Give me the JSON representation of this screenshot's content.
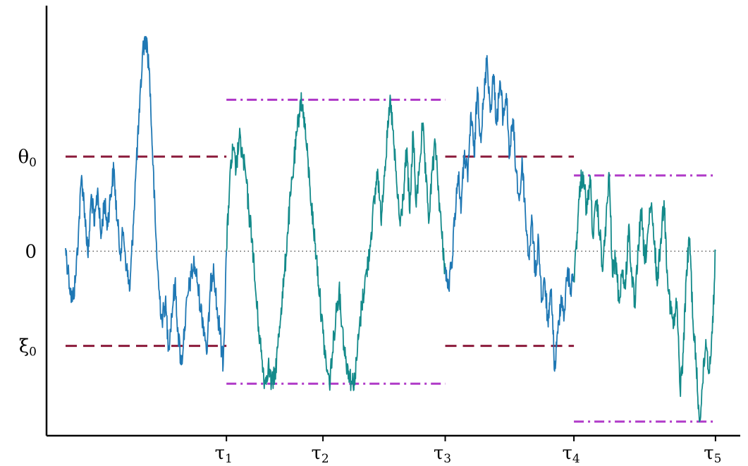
{
  "chart_data": {
    "type": "line",
    "title": "",
    "xlabel": "",
    "ylabel": "",
    "xlim": [
      0,
      10.2
    ],
    "ylim": [
      -2.7,
      3.4
    ],
    "grid": false,
    "legend": "none",
    "y_ticks": [
      {
        "label": "θ",
        "sub": "0",
        "value": 1.5
      },
      {
        "label": "0",
        "sub": "",
        "value": 0
      },
      {
        "label": "ξ",
        "sub": "0",
        "value": -1.5
      }
    ],
    "x_ticks": [
      {
        "label": "τ",
        "sub": "1",
        "value": 2.5
      },
      {
        "label": "τ",
        "sub": "2",
        "value": 4.0
      },
      {
        "label": "τ",
        "sub": "3",
        "value": 5.9
      },
      {
        "label": "τ",
        "sub": "4",
        "value": 7.9
      },
      {
        "label": "τ",
        "sub": "5",
        "value": 10.1
      }
    ],
    "reference_lines": [
      {
        "style": "dotted",
        "y": 0,
        "x": [
          0,
          10.1
        ],
        "color": "#555555"
      },
      {
        "style": "dashed",
        "y": 1.5,
        "x": [
          0,
          2.5
        ],
        "color": "#8b1a3a"
      },
      {
        "style": "dashed",
        "y": -1.5,
        "x": [
          0,
          2.5
        ],
        "color": "#8b1a3a"
      },
      {
        "style": "dashed",
        "y": 1.5,
        "x": [
          5.9,
          7.9
        ],
        "color": "#8b1a3a"
      },
      {
        "style": "dashed",
        "y": -1.5,
        "x": [
          5.9,
          7.9
        ],
        "color": "#8b1a3a"
      },
      {
        "style": "dashdot",
        "y": 2.4,
        "x": [
          2.5,
          5.9
        ],
        "color": "#b03ac8"
      },
      {
        "style": "dashdot",
        "y": -2.1,
        "x": [
          2.5,
          5.9
        ],
        "color": "#b03ac8"
      },
      {
        "style": "dashdot",
        "y": 1.2,
        "x": [
          7.9,
          10.1
        ],
        "color": "#b03ac8"
      },
      {
        "style": "dashdot",
        "y": -2.7,
        "x": [
          7.9,
          10.1
        ],
        "color": "#b03ac8"
      }
    ],
    "series": [
      {
        "color": "#1f78b4",
        "x": [
          0,
          0.05,
          0.1,
          0.15,
          0.2,
          0.25,
          0.3,
          0.35,
          0.4,
          0.45,
          0.5,
          0.55,
          0.6,
          0.65,
          0.7,
          0.75,
          0.8,
          0.85,
          0.9,
          0.95,
          1.0,
          1.05,
          1.1,
          1.15,
          1.2,
          1.25,
          1.3,
          1.35,
          1.4,
          1.45,
          1.5,
          1.55,
          1.6,
          1.65,
          1.7,
          1.75,
          1.8,
          1.85,
          1.9,
          1.95,
          2.0,
          2.05,
          2.1,
          2.15,
          2.2,
          2.25,
          2.3,
          2.35,
          2.4,
          2.45,
          2.5
        ],
        "y": [
          0.05,
          -0.4,
          -0.8,
          -0.5,
          0.3,
          1.2,
          0.6,
          -0.1,
          0.9,
          0.4,
          1.0,
          0.2,
          0.8,
          0.4,
          0.9,
          1.3,
          0.5,
          0.0,
          0.3,
          -0.3,
          -0.6,
          0.4,
          1.4,
          2.2,
          3.2,
          3.4,
          2.9,
          1.6,
          0.3,
          -0.6,
          -1.1,
          -0.8,
          -1.5,
          -1.0,
          -0.5,
          -1.3,
          -1.8,
          -1.2,
          -0.7,
          -0.4,
          -0.2,
          -0.5,
          -0.9,
          -1.2,
          -1.6,
          -0.6,
          -0.2,
          -0.9,
          -1.3,
          -1.8,
          0.0
        ]
      },
      {
        "color": "#138a8a",
        "x": [
          2.5,
          2.55,
          2.6,
          2.65,
          2.7,
          2.75,
          2.8,
          2.85,
          2.9,
          2.95,
          3.0,
          3.05,
          3.1,
          3.15,
          3.2,
          3.25,
          3.3,
          3.35,
          3.4,
          3.45,
          3.5,
          3.55,
          3.6,
          3.65,
          3.7,
          3.75,
          3.8,
          3.85,
          3.9,
          3.95,
          4.0,
          4.05,
          4.1,
          4.15,
          4.2,
          4.25,
          4.3,
          4.35,
          4.4,
          4.45,
          4.5,
          4.55,
          4.6,
          4.65,
          4.7,
          4.75,
          4.8,
          4.85,
          4.9,
          4.95,
          5.0,
          5.05,
          5.1,
          5.15,
          5.2,
          5.25,
          5.3,
          5.35,
          5.4,
          5.45,
          5.5,
          5.55,
          5.6,
          5.65,
          5.7,
          5.75,
          5.8,
          5.85,
          5.9
        ],
        "y": [
          0.0,
          1.1,
          1.6,
          1.3,
          1.8,
          1.5,
          1.2,
          0.6,
          0.2,
          -0.6,
          -1.2,
          -1.7,
          -2.1,
          -1.8,
          -2.1,
          -2.0,
          -1.5,
          -0.9,
          -0.4,
          0.3,
          0.9,
          1.4,
          1.9,
          2.4,
          2.2,
          1.6,
          1.0,
          0.4,
          -0.1,
          -0.7,
          -1.3,
          -1.8,
          -2.1,
          -1.6,
          -1.0,
          -0.6,
          -1.2,
          -1.7,
          -1.9,
          -2.1,
          -2.0,
          -1.4,
          -0.9,
          -0.5,
          -0.2,
          0.3,
          0.8,
          1.3,
          0.5,
          1.2,
          1.8,
          2.4,
          1.7,
          1.0,
          0.4,
          0.9,
          1.6,
          0.6,
          1.9,
          0.7,
          1.4,
          2.0,
          1.1,
          0.5,
          1.3,
          1.7,
          0.9,
          0.2,
          -0.3
        ]
      },
      {
        "color": "#1f78b4",
        "x": [
          5.9,
          5.95,
          6.0,
          6.05,
          6.1,
          6.15,
          6.2,
          6.25,
          6.3,
          6.35,
          6.4,
          6.45,
          6.5,
          6.55,
          6.6,
          6.65,
          6.7,
          6.75,
          6.8,
          6.85,
          6.9,
          6.95,
          7.0,
          7.05,
          7.1,
          7.15,
          7.2,
          7.25,
          7.3,
          7.35,
          7.4,
          7.45,
          7.5,
          7.55,
          7.6,
          7.65,
          7.7,
          7.75,
          7.8,
          7.85,
          7.9
        ],
        "y": [
          -0.3,
          -0.6,
          -0.2,
          0.6,
          1.2,
          0.7,
          1.6,
          1.1,
          2.2,
          1.5,
          2.6,
          1.8,
          2.4,
          3.1,
          2.2,
          2.8,
          2.0,
          2.7,
          2.1,
          2.5,
          1.5,
          2.1,
          1.3,
          0.8,
          1.4,
          0.5,
          -0.1,
          0.5,
          -0.4,
          0.2,
          -0.8,
          -0.5,
          -1.2,
          -0.6,
          -1.9,
          -1.3,
          -0.7,
          -1.0,
          -0.3,
          -0.6,
          -0.4
        ]
      },
      {
        "color": "#138a8a",
        "x": [
          7.9,
          7.95,
          8.0,
          8.05,
          8.1,
          8.15,
          8.2,
          8.25,
          8.3,
          8.35,
          8.4,
          8.45,
          8.5,
          8.55,
          8.6,
          8.65,
          8.7,
          8.75,
          8.8,
          8.85,
          8.9,
          8.95,
          9.0,
          9.05,
          9.1,
          9.15,
          9.2,
          9.25,
          9.3,
          9.35,
          9.4,
          9.45,
          9.5,
          9.55,
          9.6,
          9.65,
          9.7,
          9.75,
          9.8,
          9.85,
          9.9,
          9.95,
          10.0,
          10.05,
          10.1
        ],
        "y": [
          -0.4,
          0.3,
          1.1,
          1.2,
          0.6,
          1.2,
          0.2,
          0.8,
          0.3,
          -0.3,
          0.5,
          1.2,
          -0.4,
          -0.1,
          -0.8,
          -0.3,
          -0.6,
          0.4,
          -0.4,
          -0.9,
          0.1,
          0.6,
          -0.2,
          0.3,
          0.7,
          0.1,
          -0.5,
          0.2,
          0.8,
          -0.3,
          -0.9,
          -1.2,
          -0.8,
          -2.2,
          -1.6,
          -0.3,
          0.2,
          -1.1,
          -1.8,
          -2.7,
          -2.1,
          -1.4,
          -1.9,
          -1.3,
          0.0
        ]
      }
    ]
  }
}
